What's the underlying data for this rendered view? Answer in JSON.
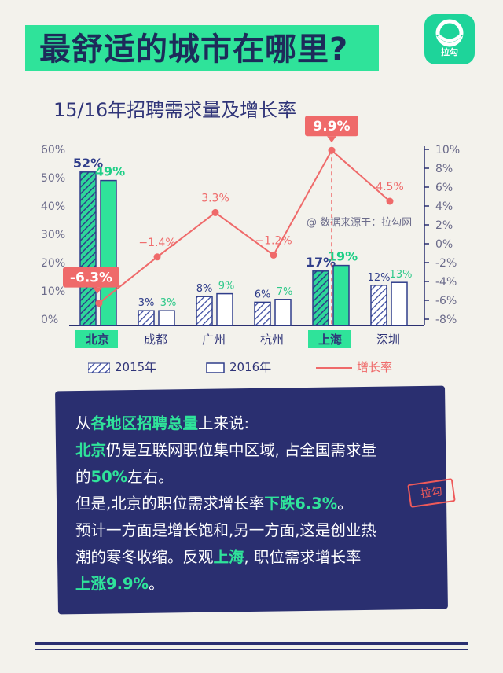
{
  "header": {
    "title": "最舒适的城市在哪里?",
    "logo_text": "拉勾"
  },
  "source_note": "@ 数据来源于：拉勾网",
  "colors": {
    "bar2015": "#2fd69a",
    "bar2015_hatch": "#2f3d8a",
    "bar2016": "#2fe39a",
    "line": "#ef6a6a",
    "navy": "#2a2f70",
    "accent_green": "#2fe39a"
  },
  "chart_data": {
    "type": "bar",
    "title": "15/16年招聘需求量及增长率",
    "categories": [
      "北京",
      "成都",
      "广州",
      "杭州",
      "上海",
      "深圳"
    ],
    "highlight_categories": [
      "北京",
      "上海"
    ],
    "series": [
      {
        "name": "2015年",
        "values": [
          52,
          3,
          8,
          6,
          17,
          12
        ],
        "labels": [
          "52%",
          "3%",
          "8%",
          "6%",
          "17%",
          "12%"
        ]
      },
      {
        "name": "2016年",
        "values": [
          49,
          3,
          9,
          7,
          19,
          13
        ],
        "labels": [
          "49%",
          "3%",
          "9%",
          "7%",
          "19%",
          "13%"
        ]
      }
    ],
    "line_series": {
      "name": "增长率",
      "values": [
        -6.3,
        -1.4,
        3.3,
        -1.2,
        9.9,
        4.5
      ],
      "labels": [
        "-6.3%",
        "−1.4%",
        "3.3%",
        "−1.2%",
        "9.9%",
        "4.5%"
      ]
    },
    "y_left": {
      "ticks": [
        "0%",
        "10%",
        "20%",
        "30%",
        "40%",
        "50%",
        "60%"
      ],
      "range": [
        0,
        60
      ]
    },
    "y_right": {
      "ticks": [
        "-8%",
        "-6%",
        "-4%",
        "-2%",
        "0%",
        "2%",
        "4%",
        "6%",
        "8%",
        "10%"
      ],
      "range": [
        -8,
        10
      ]
    },
    "legend_placement": "bottom",
    "grid": false
  },
  "panel": {
    "l1a": "从",
    "l1b": "各地区招聘总量",
    "l1c": "上来说:",
    "l2a": "北京",
    "l2b": "仍是互联网职位集中区域, 占全国需求量",
    "l3a": "的",
    "l3b": "50%",
    "l3c": "左右。",
    "l4a": "但是,北京的职位需求增长率",
    "l4b": "下跌6.3%",
    "l4c": "。",
    "l5": "预计一方面是增长饱和,另一方面,这是创业热",
    "l6a": "潮的寒冬收缩。反观",
    "l6b": "上海",
    "l6c": ", 职位需求增长率",
    "l7a": "上涨9.9%",
    "l7b": "。",
    "stamp": "拉勾"
  }
}
